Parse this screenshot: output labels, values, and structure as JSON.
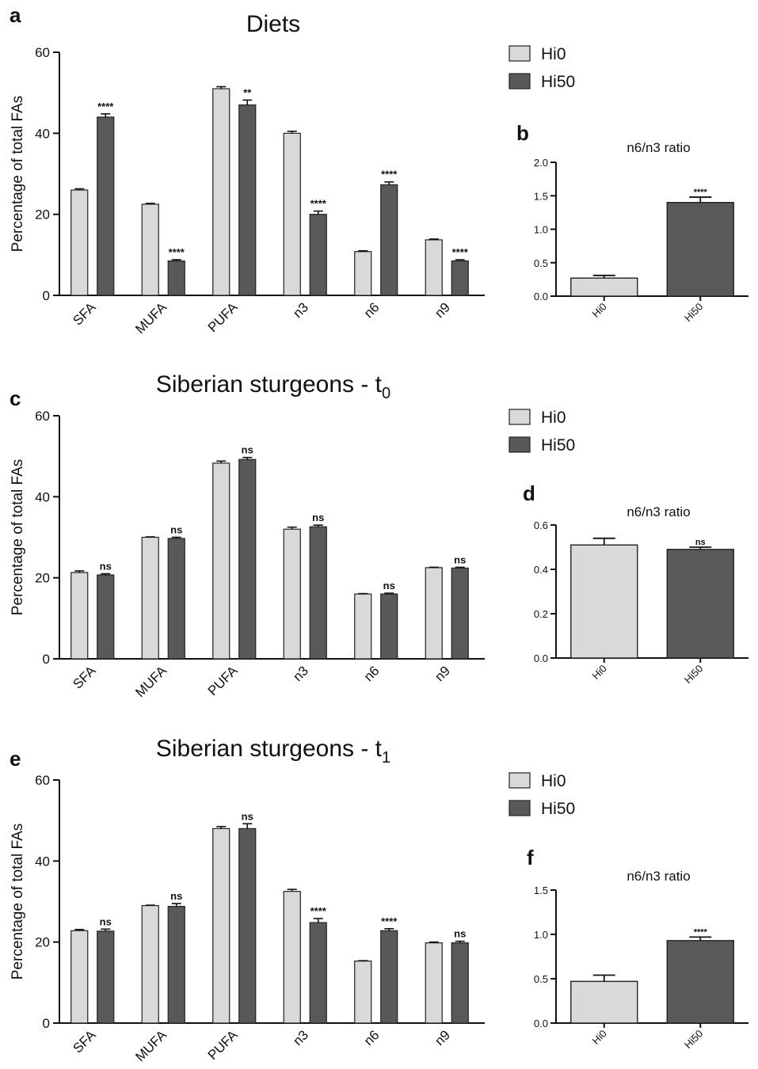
{
  "colors": {
    "hi0": "#d9d9d9",
    "hi50": "#595959",
    "axis": "#111111"
  },
  "legend": {
    "hi0": "Hi0",
    "hi50": "Hi50"
  },
  "chart_data": [
    {
      "panel_label": "a",
      "type": "bar",
      "title": "Diets",
      "title_sub": "",
      "ylabel": "Percentage of total FAs",
      "ylim": [
        0,
        60
      ],
      "yticks": [
        "0",
        "20",
        "40",
        "60"
      ],
      "categories": [
        "SFA",
        "MUFA",
        "PUFA",
        "n3",
        "n6",
        "n9"
      ],
      "series": [
        {
          "name": "Hi0",
          "values": [
            26,
            22.5,
            51,
            40,
            10.8,
            13.7
          ],
          "errors": [
            0.3,
            0.2,
            0.5,
            0.5,
            0.2,
            0.2
          ]
        },
        {
          "name": "Hi50",
          "values": [
            44,
            8.5,
            47,
            20,
            27.3,
            8.5
          ],
          "errors": [
            0.8,
            0.3,
            1.2,
            0.8,
            0.7,
            0.3
          ]
        }
      ],
      "annotations": [
        "****",
        "****",
        "**",
        "****",
        "****",
        "****"
      ],
      "legend": "top-right"
    },
    {
      "panel_label": "b",
      "type": "bar",
      "title": "n6/n3 ratio",
      "ylim": [
        0,
        2.0
      ],
      "yticks": [
        "0.0",
        "0.5",
        "1.0",
        "1.5",
        "2.0"
      ],
      "categories": [
        "Hi0",
        "Hi50"
      ],
      "values": [
        0.27,
        1.4
      ],
      "errors": [
        0.04,
        0.08
      ],
      "annotations": [
        "",
        "****"
      ]
    },
    {
      "panel_label": "c",
      "type": "bar",
      "title": "Siberian sturgeons - t",
      "title_sub": "0",
      "ylabel": "Percentage of total FAs",
      "ylim": [
        0,
        60
      ],
      "yticks": [
        "0",
        "20",
        "40",
        "60"
      ],
      "categories": [
        "SFA",
        "MUFA",
        "PUFA",
        "n3",
        "n6",
        "n9"
      ],
      "series": [
        {
          "name": "Hi0",
          "values": [
            21.3,
            30,
            48.3,
            32,
            16,
            22.5
          ],
          "errors": [
            0.4,
            0.1,
            0.5,
            0.5,
            0.1,
            0.1
          ]
        },
        {
          "name": "Hi50",
          "values": [
            20.7,
            29.7,
            49.2,
            32.6,
            16,
            22.4
          ],
          "errors": [
            0.3,
            0.3,
            0.5,
            0.4,
            0.2,
            0.2
          ]
        }
      ],
      "annotations": [
        "ns",
        "ns",
        "ns",
        "ns",
        "ns",
        "ns"
      ],
      "legend": "top-right"
    },
    {
      "panel_label": "d",
      "type": "bar",
      "title": "n6/n3 ratio",
      "ylim": [
        0,
        0.6
      ],
      "yticks": [
        "0.0",
        "0.2",
        "0.4",
        "0.6"
      ],
      "categories": [
        "Hi0",
        "Hi50"
      ],
      "values": [
        0.51,
        0.49
      ],
      "errors": [
        0.03,
        0.01
      ],
      "annotations": [
        "",
        "ns"
      ]
    },
    {
      "panel_label": "e",
      "type": "bar",
      "title": "Siberian sturgeons - t",
      "title_sub": "1",
      "ylabel": "Percentage of total FAs",
      "ylim": [
        0,
        60
      ],
      "yticks": [
        "0",
        "20",
        "40",
        "60"
      ],
      "categories": [
        "SFA",
        "MUFA",
        "PUFA",
        "n3",
        "n6",
        "n9"
      ],
      "series": [
        {
          "name": "Hi0",
          "values": [
            22.8,
            29,
            48,
            32.5,
            15.3,
            19.8
          ],
          "errors": [
            0.3,
            0.1,
            0.5,
            0.5,
            0.1,
            0.2
          ]
        },
        {
          "name": "Hi50",
          "values": [
            22.7,
            28.8,
            48,
            24.8,
            22.8,
            19.8
          ],
          "errors": [
            0.5,
            0.7,
            1.2,
            1.0,
            0.5,
            0.4
          ]
        }
      ],
      "annotations": [
        "ns",
        "ns",
        "ns",
        "****",
        "****",
        "ns"
      ],
      "legend": "top-right"
    },
    {
      "panel_label": "f",
      "type": "bar",
      "title": "n6/n3 ratio",
      "ylim": [
        0,
        1.5
      ],
      "yticks": [
        "0.0",
        "0.5",
        "1.0",
        "1.5"
      ],
      "categories": [
        "Hi0",
        "Hi50"
      ],
      "values": [
        0.47,
        0.93
      ],
      "errors": [
        0.07,
        0.04
      ],
      "annotations": [
        "",
        "****"
      ]
    }
  ]
}
